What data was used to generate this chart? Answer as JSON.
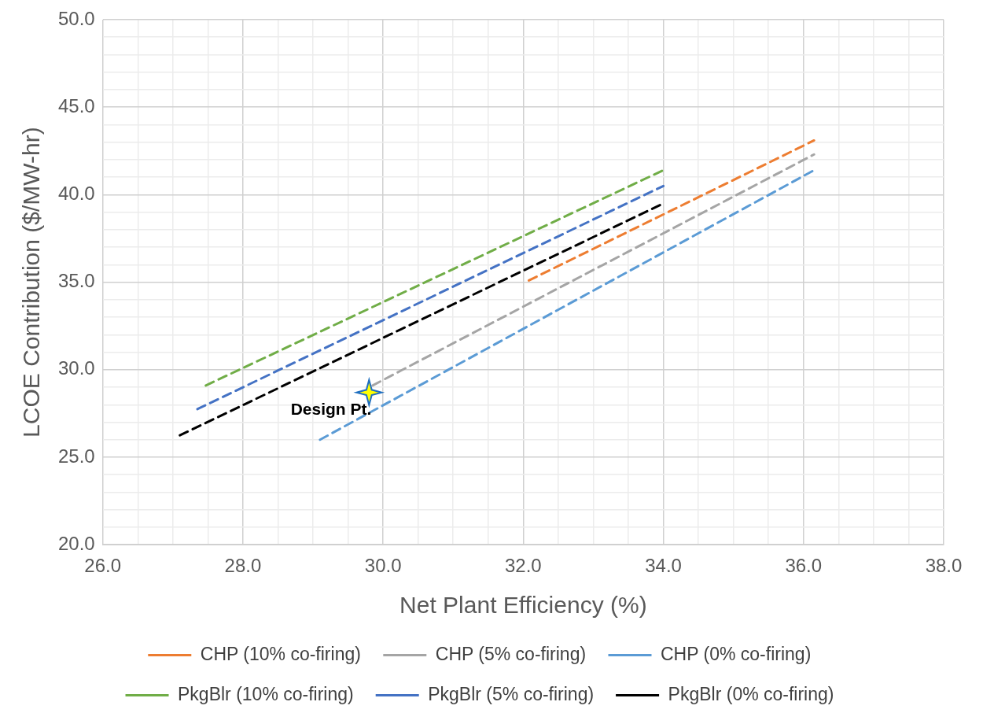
{
  "chart_data": {
    "type": "line",
    "xlabel": "Net Plant Efficiency (%)",
    "ylabel": "LCOE Contribution ($/MW-hr)",
    "xlim": [
      26,
      38
    ],
    "ylim": [
      20,
      50
    ],
    "xticks": [
      {
        "value": 26,
        "label": "26.0"
      },
      {
        "value": 26.5,
        "label": null
      },
      {
        "value": 27,
        "label": null
      },
      {
        "value": 27.5,
        "label": null
      },
      {
        "value": 28,
        "label": "28.0"
      },
      {
        "value": 28.5,
        "label": null
      },
      {
        "value": 29,
        "label": null
      },
      {
        "value": 29.5,
        "label": null
      },
      {
        "value": 30,
        "label": "30.0"
      },
      {
        "value": 30.5,
        "label": null
      },
      {
        "value": 31,
        "label": null
      },
      {
        "value": 31.5,
        "label": null
      },
      {
        "value": 32,
        "label": "32.0"
      },
      {
        "value": 32.5,
        "label": null
      },
      {
        "value": 33,
        "label": null
      },
      {
        "value": 33.5,
        "label": null
      },
      {
        "value": 34,
        "label": "34.0"
      },
      {
        "value": 34.5,
        "label": null
      },
      {
        "value": 35,
        "label": null
      },
      {
        "value": 35.5,
        "label": null
      },
      {
        "value": 36,
        "label": "36.0"
      },
      {
        "value": 36.5,
        "label": null
      },
      {
        "value": 37,
        "label": null
      },
      {
        "value": 37.5,
        "label": null
      },
      {
        "value": 38,
        "label": "38.0"
      }
    ],
    "yticks": [
      {
        "value": 20,
        "label": "20.0"
      },
      {
        "value": 21,
        "label": null
      },
      {
        "value": 22,
        "label": null
      },
      {
        "value": 23,
        "label": null
      },
      {
        "value": 24,
        "label": null
      },
      {
        "value": 25,
        "label": "25.0"
      },
      {
        "value": 26,
        "label": null
      },
      {
        "value": 27,
        "label": null
      },
      {
        "value": 28,
        "label": null
      },
      {
        "value": 29,
        "label": null
      },
      {
        "value": 30,
        "label": "30.0"
      },
      {
        "value": 31,
        "label": null
      },
      {
        "value": 32,
        "label": null
      },
      {
        "value": 33,
        "label": null
      },
      {
        "value": 34,
        "label": null
      },
      {
        "value": 35,
        "label": "35.0"
      },
      {
        "value": 36,
        "label": null
      },
      {
        "value": 37,
        "label": null
      },
      {
        "value": 38,
        "label": null
      },
      {
        "value": 39,
        "label": null
      },
      {
        "value": 40,
        "label": "40.0"
      },
      {
        "value": 41,
        "label": null
      },
      {
        "value": 42,
        "label": null
      },
      {
        "value": 43,
        "label": null
      },
      {
        "value": 44,
        "label": null
      },
      {
        "value": 45,
        "label": "45.0"
      },
      {
        "value": 46,
        "label": null
      },
      {
        "value": 47,
        "label": null
      },
      {
        "value": 48,
        "label": null
      },
      {
        "value": 49,
        "label": null
      },
      {
        "value": 50,
        "label": "50.0"
      }
    ],
    "grid": true,
    "legend": "bottom",
    "marker": "none",
    "series": [
      {
        "name": "CHP (10% co-firing)",
        "color": "#ed7d31",
        "line_style": "dashed",
        "x": [
          32.08,
          36.15
        ],
        "values": [
          35.1,
          43.1
        ]
      },
      {
        "name": "CHP (5% co-firing)",
        "color": "#a5a5a5",
        "line_style": "dashed",
        "x": [
          29.85,
          36.15
        ],
        "values": [
          29.1,
          42.3
        ]
      },
      {
        "name": "CHP (0% co-firing)",
        "color": "#5b9bd5",
        "line_style": "dashed",
        "x": [
          29.1,
          36.15
        ],
        "values": [
          26.0,
          41.4
        ]
      },
      {
        "name": "PkgBlr (10% co-firing)",
        "color": "#70ad47",
        "line_style": "dashed",
        "x": [
          27.47,
          34.0
        ],
        "values": [
          29.1,
          41.4
        ]
      },
      {
        "name": "PkgBlr (5% co-firing)",
        "color": "#4472c4",
        "line_style": "dashed",
        "x": [
          27.35,
          34.0
        ],
        "values": [
          27.75,
          40.5
        ]
      },
      {
        "name": "PkgBlr (0% co-firing)",
        "color": "#000000",
        "line_style": "dashed",
        "x": [
          27.1,
          34.0
        ],
        "values": [
          26.25,
          39.5
        ]
      },
      {
        "type": "scatter",
        "marker": "star",
        "color": "#ffff00",
        "x": [
          29.8
        ],
        "values": [
          28.7
        ]
      }
    ],
    "annotations": [
      {
        "text": "Design Pt.",
        "x": 29.8,
        "y": 28.7
      }
    ]
  }
}
